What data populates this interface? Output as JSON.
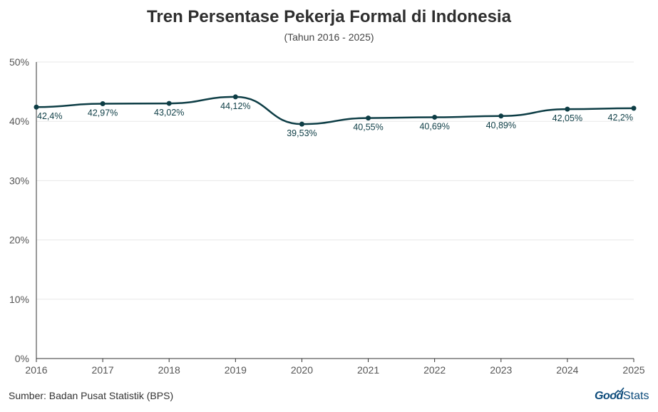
{
  "chart_data": {
    "type": "line",
    "title": "Tren Persentase Pekerja Formal di Indonesia",
    "subtitle": "(Tahun 2016 - 2025)",
    "x": [
      "2016",
      "2017",
      "2018",
      "2019",
      "2020",
      "2021",
      "2022",
      "2023",
      "2024",
      "2025"
    ],
    "series": [
      {
        "values": [
          42.4,
          42.97,
          43.02,
          44.12,
          39.53,
          40.55,
          40.69,
          40.89,
          42.05,
          42.2
        ],
        "data_labels": [
          "42,4%",
          "42,97%",
          "43,02%",
          "44,12%",
          "39,53%",
          "40,55%",
          "40,69%",
          "40,89%",
          "42,05%",
          "42,2%"
        ],
        "color": "#0d3d45"
      }
    ],
    "ylim": [
      0,
      50
    ],
    "yticks": [
      0,
      10,
      20,
      30,
      40,
      50
    ],
    "ytick_labels": [
      "0%",
      "10%",
      "20%",
      "30%",
      "40%",
      "50%"
    ],
    "grid": true,
    "xlabel": "",
    "ylabel": ""
  },
  "footer": {
    "source": "Sumber: Badan Pusat Statistik (BPS)",
    "logo_good": "Good",
    "logo_stats": "Stats"
  },
  "colors": {
    "line": "#0d3d45",
    "grid": "#e8e8e8",
    "axis_text": "#555555",
    "logo": "#0b4a7a"
  }
}
